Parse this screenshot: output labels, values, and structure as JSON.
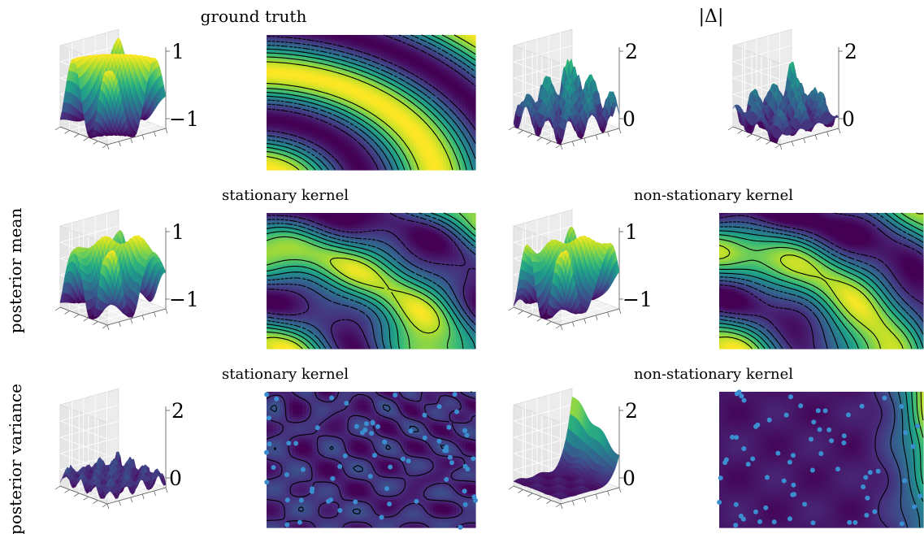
{
  "figure": {
    "col_titles": {
      "ground_truth": "ground truth",
      "abs_delta": "|Δ|"
    },
    "row_labels": {
      "mean": "posterior mean",
      "variance": "posterior variance"
    },
    "panel_titles": {
      "mean_stationary": "stationary kernel",
      "mean_nonstationary": "non-stationary kernel",
      "var_stationary": "stationary kernel",
      "var_nonstationary": "non-stationary kernel"
    }
  },
  "chart_data": [
    {
      "type": "surface",
      "ztick_labels": [
        "1",
        "−1"
      ],
      "zlim": [
        -1,
        1
      ],
      "colormap": "viridis",
      "grid": true
    },
    {
      "type": "contour",
      "colormap": "viridis",
      "contour_style": "solid and dashed"
    },
    {
      "type": "surface",
      "ztick_labels": [
        "2",
        "0"
      ],
      "zlim": [
        0,
        2
      ],
      "colormap": "viridis",
      "grid": true
    },
    {
      "type": "surface",
      "ztick_labels": [
        "2",
        "0"
      ],
      "zlim": [
        0,
        2
      ],
      "colormap": "viridis",
      "grid": true
    },
    {
      "type": "surface",
      "ztick_labels": [
        "1",
        "−1"
      ],
      "zlim": [
        -1,
        1
      ],
      "colormap": "viridis",
      "grid": true
    },
    {
      "type": "contour",
      "colormap": "viridis",
      "contour_style": "solid and dashed"
    },
    {
      "type": "surface",
      "ztick_labels": [
        "1",
        "−1"
      ],
      "zlim": [
        -1,
        1
      ],
      "colormap": "viridis",
      "grid": true
    },
    {
      "type": "contour",
      "colormap": "viridis",
      "contour_style": "solid and dashed"
    },
    {
      "type": "surface",
      "ztick_labels": [
        "2",
        "0"
      ],
      "zlim": [
        0,
        2
      ],
      "colormap": "viridis",
      "grid": true
    },
    {
      "type": "contour",
      "colormap": "viridis",
      "contour_style": "solid",
      "points_color": "#3b8fd0",
      "points_count": 70
    },
    {
      "type": "surface",
      "ztick_labels": [
        "2",
        "0"
      ],
      "zlim": [
        0,
        2
      ],
      "colormap": "viridis",
      "grid": true
    },
    {
      "type": "contour",
      "colormap": "viridis",
      "contour_style": "solid",
      "points_color": "#3b8fd0",
      "points_count": 70
    }
  ]
}
